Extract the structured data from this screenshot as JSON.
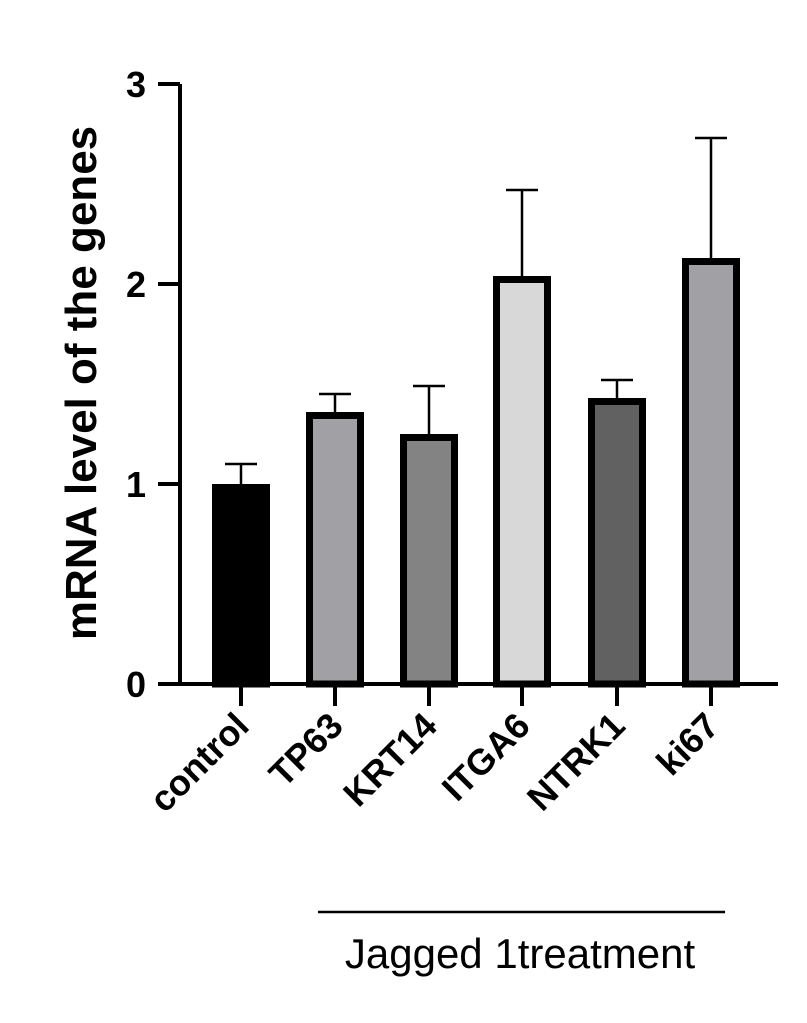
{
  "chart_data": {
    "type": "bar",
    "title": "",
    "xlabel": "",
    "ylabel": "mRNA level of the genes",
    "ylim": [
      0,
      3
    ],
    "yticks": [
      0,
      1,
      2,
      3
    ],
    "grid": false,
    "categories": [
      "control",
      "TP63",
      "KRT14",
      "ITGA6",
      "NTRK1",
      "ki67"
    ],
    "values": [
      1.0,
      1.36,
      1.25,
      2.04,
      1.43,
      2.13
    ],
    "error_upper": [
      0.1,
      0.09,
      0.24,
      0.43,
      0.09,
      0.6
    ],
    "bar_colors": [
      "#000000",
      "#a1a1a5",
      "#838383",
      "#d8d8d8",
      "#616161",
      "#a1a1a5"
    ],
    "group_bracket": {
      "label": "Jagged 1treatment",
      "from_category": "TP63",
      "to_category": "ki67"
    }
  }
}
